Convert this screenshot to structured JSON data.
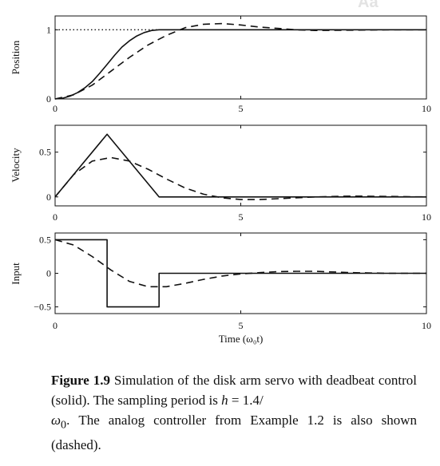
{
  "watermark": "Aa",
  "chart_data": [
    {
      "type": "line",
      "ylabel": "Position",
      "xlim": [
        0,
        10
      ],
      "ylim": [
        0,
        1.2
      ],
      "xticks": [
        "0",
        "5",
        "10"
      ],
      "yticks": [
        {
          "v": 0,
          "label": "0"
        },
        {
          "v": 1,
          "label": "1"
        }
      ],
      "reference_line": {
        "y": 1,
        "x": [
          0,
          3
        ],
        "style": "dotted"
      },
      "series": [
        {
          "style": "solid",
          "x": [
            0,
            0.2,
            0.4,
            0.6,
            0.8,
            1.0,
            1.2,
            1.4,
            1.6,
            1.8,
            2.0,
            2.2,
            2.4,
            2.6,
            2.8,
            3.0,
            4,
            5,
            6,
            7,
            8,
            9,
            10
          ],
          "y": [
            0,
            0.01,
            0.04,
            0.09,
            0.16,
            0.25,
            0.37,
            0.5,
            0.63,
            0.75,
            0.84,
            0.91,
            0.96,
            0.99,
            1.0,
            1.0,
            1.0,
            1.0,
            1.0,
            1.0,
            1.0,
            1.0,
            1.0
          ]
        },
        {
          "style": "dashed",
          "x": [
            0,
            0.5,
            1.0,
            1.5,
            2.0,
            2.5,
            3.0,
            3.5,
            4.0,
            4.5,
            5.0,
            5.5,
            6.0,
            6.5,
            7.0,
            8.0,
            9.0,
            10.0
          ],
          "y": [
            0,
            0.06,
            0.2,
            0.4,
            0.6,
            0.78,
            0.92,
            1.03,
            1.08,
            1.09,
            1.07,
            1.04,
            1.02,
            1.0,
            0.99,
            0.995,
            1.0,
            1.0
          ]
        }
      ]
    },
    {
      "type": "line",
      "ylabel": "Velocity",
      "xlim": [
        0,
        10
      ],
      "ylim": [
        -0.1,
        0.8
      ],
      "xticks": [
        "0",
        "5",
        "10"
      ],
      "yticks": [
        {
          "v": 0,
          "label": "0"
        },
        {
          "v": 0.5,
          "label": "0.5"
        }
      ],
      "series": [
        {
          "style": "solid",
          "x": [
            0,
            1.4,
            2.8,
            10
          ],
          "y": [
            0,
            0.7,
            0,
            0
          ]
        },
        {
          "style": "dashed",
          "x": [
            0,
            0.5,
            1.0,
            1.5,
            2.0,
            2.5,
            3.0,
            3.5,
            4.0,
            4.5,
            5.0,
            5.5,
            6.0,
            7.0,
            8.0,
            9.0,
            10.0
          ],
          "y": [
            0,
            0.25,
            0.4,
            0.44,
            0.4,
            0.31,
            0.2,
            0.1,
            0.03,
            -0.01,
            -0.03,
            -0.03,
            -0.02,
            0.0,
            0.01,
            0.005,
            0.0
          ]
        }
      ]
    },
    {
      "type": "line",
      "ylabel": "Input",
      "xlabel": "Time (ω₀t)",
      "xlim": [
        0,
        10
      ],
      "ylim": [
        -0.6,
        0.6
      ],
      "xticks": [
        "0",
        "5",
        "10"
      ],
      "yticks": [
        {
          "v": 0.5,
          "label": "0.5"
        },
        {
          "v": 0,
          "label": "0"
        },
        {
          "v": -0.5,
          "label": "−0.5"
        }
      ],
      "series": [
        {
          "style": "solid",
          "x": [
            0,
            1.4,
            1.4,
            2.8,
            2.8,
            10
          ],
          "y": [
            0.5,
            0.5,
            -0.5,
            -0.5,
            0,
            0
          ]
        },
        {
          "style": "dashed",
          "x": [
            0,
            0.5,
            1.0,
            1.5,
            2.0,
            2.5,
            3.0,
            3.5,
            4.0,
            4.5,
            5.0,
            5.5,
            6.0,
            6.5,
            7.0,
            8.0,
            9.0,
            10.0
          ],
          "y": [
            0.5,
            0.42,
            0.25,
            0.05,
            -0.12,
            -0.2,
            -0.2,
            -0.15,
            -0.09,
            -0.04,
            -0.01,
            0.01,
            0.025,
            0.03,
            0.03,
            0.01,
            0.0,
            0.0
          ]
        }
      ]
    }
  ],
  "caption": {
    "label": "Figure 1.9",
    "text_before_h": " Simulation of the disk arm servo with deadbeat control (solid). The sampling period is ",
    "h_symbol": "h",
    "h_value": " = 1.4/",
    "omega_symbol": "ω",
    "omega_sub": "0",
    "text_after": ". The analog controller from Example 1.2 is also shown (dashed)."
  }
}
